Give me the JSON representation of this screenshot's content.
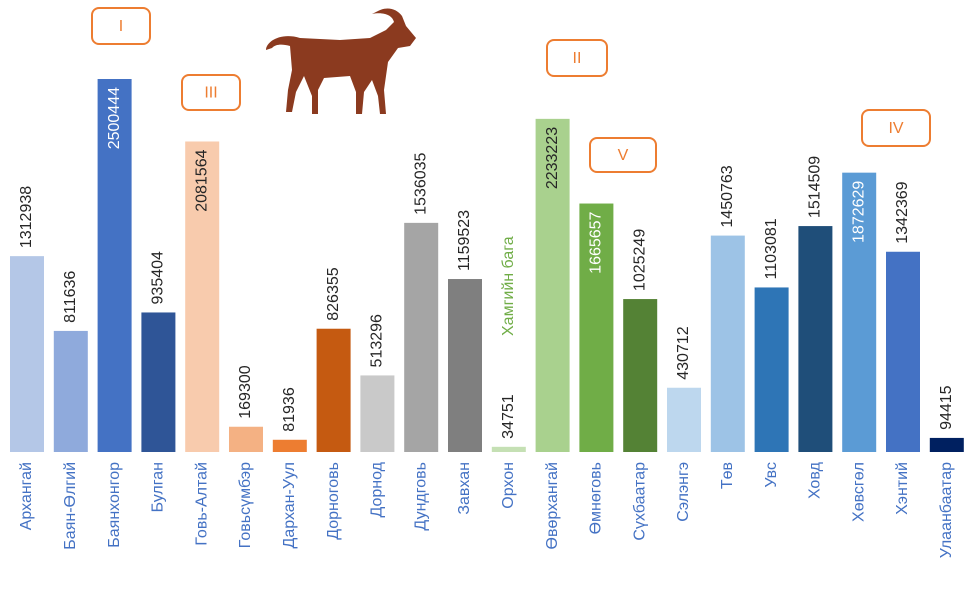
{
  "chart_data": {
    "type": "bar",
    "categories": [
      "Архангай",
      "Баян-Өлгий",
      "Баянхонгор",
      "Булган",
      "Говь-Алтай",
      "Говьсүмбэр",
      "Дархан-Уул",
      "Дорноговь",
      "Дорнод",
      "Дундговь",
      "Завхан",
      "Орхон",
      "Өвөрхангай",
      "Өмнөговь",
      "Сүхбаатар",
      "Сэлэнгэ",
      "Төв",
      "Увс",
      "Ховд",
      "Хөвсгөл",
      "Хэнтий",
      "Улаанбаатар"
    ],
    "values": [
      1312938,
      811636,
      2500444,
      935404,
      2081564,
      169300,
      81936,
      826355,
      513296,
      1536035,
      1159523,
      34751,
      2233223,
      1665657,
      1025249,
      430712,
      1450763,
      1103081,
      1514509,
      1872629,
      1342369,
      94415
    ],
    "colors": [
      "#b4c7e7",
      "#8faadc",
      "#4472c4",
      "#2f5597",
      "#f8cbad",
      "#f4b183",
      "#ed7d31",
      "#c55a11",
      "#c9c9c9",
      "#a5a5a5",
      "#7f7f7f",
      "#c5e0b4",
      "#a9d18e",
      "#70ad47",
      "#548235",
      "#bdd7ee",
      "#9dc3e6",
      "#2e75b6",
      "#1f4e79",
      "#5b9bd5",
      "#4472c4",
      "#002060"
    ],
    "annotations": [
      {
        "text": "I"
      },
      {
        "text": "III"
      },
      {
        "text": "II"
      },
      {
        "text": "V"
      },
      {
        "text": "IV"
      },
      {
        "text": "Хамгийн бага"
      }
    ]
  }
}
